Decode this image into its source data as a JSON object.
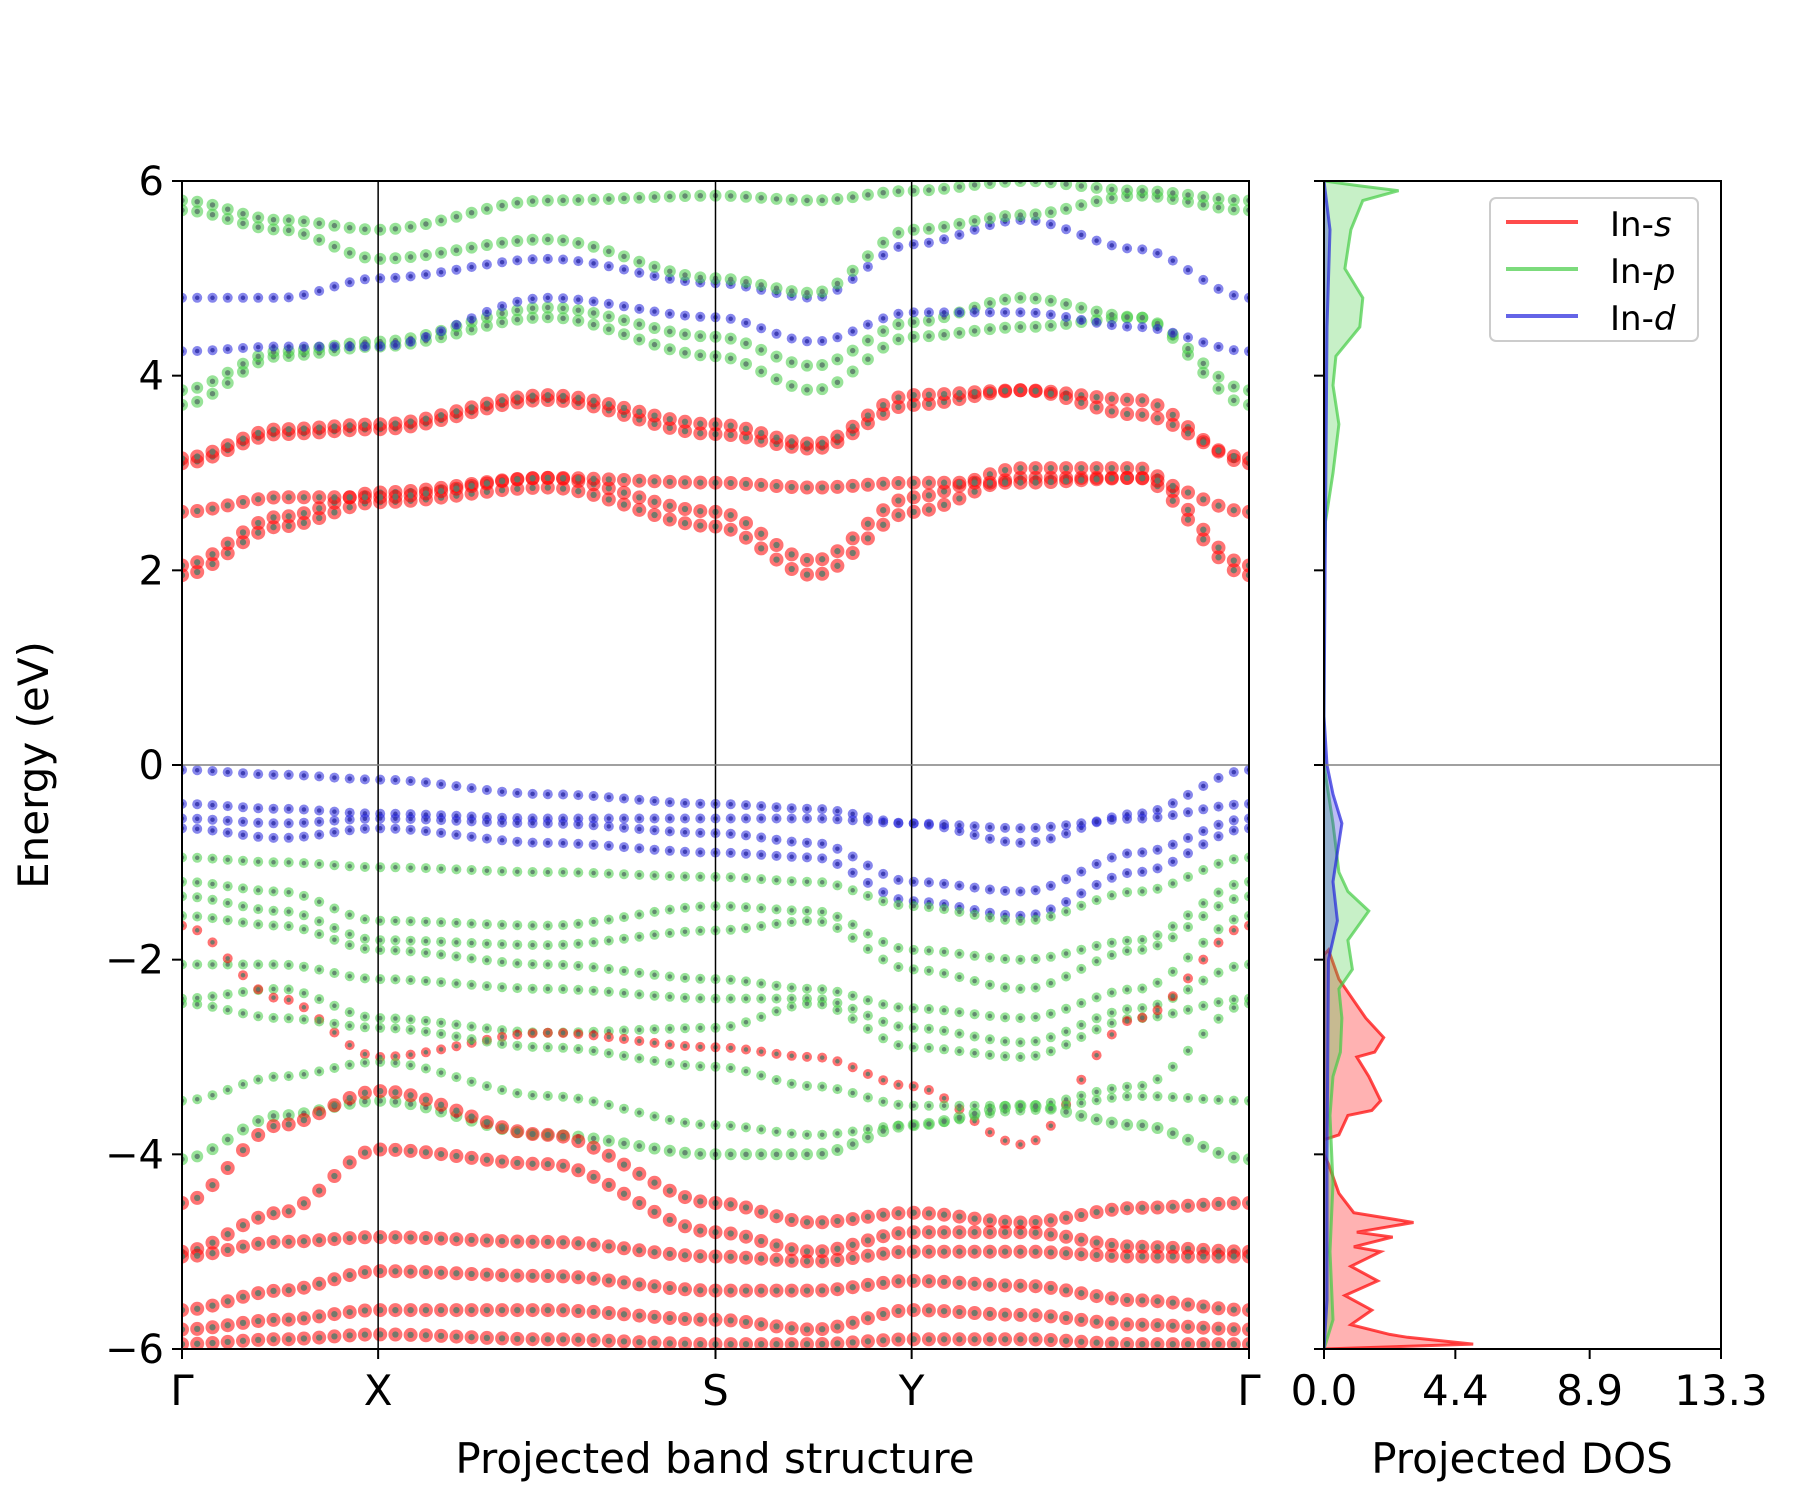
{
  "colors": {
    "s": "#ff0000",
    "p": "#44cc44",
    "d": "#2222dd",
    "axis": "#000000",
    "fermi": "#808080"
  },
  "chart_data": [
    {
      "type": "scatter",
      "title": "",
      "xlabel": "Projected band structure",
      "ylabel": "Energy (eV)",
      "ylim": [
        -6,
        6
      ],
      "yticks": [
        -6,
        -4,
        -2,
        0,
        2,
        4,
        6
      ],
      "ytick_labels": [
        "−6",
        "−4",
        "−2",
        "0",
        "2",
        "4",
        "6"
      ],
      "kpoints": [
        {
          "label": "Γ",
          "pos": 0.0
        },
        {
          "label": "X",
          "pos": 1.0
        },
        {
          "label": "S",
          "pos": 2.72
        },
        {
          "label": "Y",
          "pos": 3.72
        },
        {
          "label": "Γ",
          "pos": 5.44
        }
      ],
      "fermi_level": 0,
      "bands": [
        {
          "orbital": "s",
          "size": 7,
          "energies": [
            1.95,
            2.45,
            2.7,
            2.85,
            2.45,
            1.95,
            2.6,
            2.95,
            2.95,
            1.95
          ]
        },
        {
          "orbital": "s",
          "size": 7,
          "energies": [
            2.05,
            2.55,
            2.8,
            2.95,
            2.6,
            2.1,
            2.75,
            3.05,
            3.05,
            2.05
          ]
        },
        {
          "orbital": "s",
          "size": 7,
          "energies": [
            2.6,
            2.75,
            2.75,
            2.95,
            2.9,
            2.85,
            2.9,
            2.9,
            2.95,
            2.6
          ]
        },
        {
          "orbital": "s",
          "size": 7,
          "energies": [
            3.1,
            3.4,
            3.45,
            3.75,
            3.4,
            3.25,
            3.7,
            3.85,
            3.75,
            3.1
          ]
        },
        {
          "orbital": "s",
          "size": 7,
          "energies": [
            3.15,
            3.45,
            3.5,
            3.8,
            3.5,
            3.3,
            3.8,
            3.85,
            3.6,
            3.15
          ]
        },
        {
          "orbital": "p",
          "size": 6,
          "energies": [
            3.7,
            4.2,
            4.3,
            4.6,
            4.2,
            3.85,
            4.4,
            4.5,
            4.6,
            3.7
          ]
        },
        {
          "orbital": "p",
          "size": 6,
          "energies": [
            3.85,
            4.25,
            4.35,
            4.7,
            4.4,
            4.1,
            4.55,
            4.8,
            4.6,
            3.85
          ]
        },
        {
          "orbital": "d",
          "size": 5,
          "energies": [
            4.25,
            4.3,
            4.3,
            4.8,
            4.6,
            4.35,
            4.65,
            4.65,
            4.5,
            4.25
          ]
        },
        {
          "orbital": "d",
          "size": 5,
          "energies": [
            4.8,
            4.8,
            5.0,
            5.2,
            4.95,
            4.8,
            5.35,
            5.6,
            5.3,
            4.8
          ]
        },
        {
          "orbital": "p",
          "size": 6,
          "energies": [
            5.7,
            5.5,
            5.2,
            5.4,
            5.0,
            4.85,
            5.5,
            5.65,
            5.85,
            5.7
          ]
        },
        {
          "orbital": "p",
          "size": 6,
          "energies": [
            5.8,
            5.6,
            5.5,
            5.8,
            5.85,
            5.8,
            5.9,
            6.0,
            5.9,
            5.8
          ]
        },
        {
          "orbital": "d",
          "size": 5,
          "energies": [
            -0.05,
            -0.1,
            -0.15,
            -0.3,
            -0.4,
            -0.45,
            -0.6,
            -0.8,
            -0.5,
            -0.05
          ]
        },
        {
          "orbital": "d",
          "size": 5,
          "energies": [
            -0.4,
            -0.45,
            -0.5,
            -0.55,
            -0.55,
            -0.55,
            -0.6,
            -0.65,
            -0.55,
            -0.4
          ]
        },
        {
          "orbital": "d",
          "size": 5,
          "energies": [
            -0.55,
            -0.6,
            -0.55,
            -0.6,
            -0.7,
            -0.8,
            -1.2,
            -1.3,
            -0.9,
            -0.55
          ]
        },
        {
          "orbital": "d",
          "size": 5,
          "energies": [
            -0.65,
            -0.75,
            -0.65,
            -0.8,
            -0.9,
            -0.95,
            -1.4,
            -1.55,
            -1.1,
            -0.65
          ]
        },
        {
          "orbital": "p",
          "size": 5,
          "energies": [
            -0.95,
            -1.0,
            -1.05,
            -1.1,
            -1.15,
            -1.2,
            -1.45,
            -1.6,
            -1.3,
            -0.95
          ]
        },
        {
          "orbital": "p",
          "size": 5,
          "energies": [
            -1.2,
            -1.3,
            -1.6,
            -1.65,
            -1.45,
            -1.5,
            -1.9,
            -2.0,
            -1.8,
            -1.2
          ]
        },
        {
          "orbital": "p",
          "size": 5,
          "energies": [
            -1.35,
            -1.5,
            -1.8,
            -1.85,
            -1.7,
            -1.6,
            -2.1,
            -2.3,
            -1.9,
            -1.35
          ]
        },
        {
          "orbital": "p",
          "size": 5,
          "energies": [
            -1.55,
            -1.65,
            -1.9,
            -2.05,
            -2.2,
            -2.3,
            -2.5,
            -2.6,
            -2.3,
            -1.55
          ]
        },
        {
          "orbital": "p",
          "size": 5,
          "energies": [
            -2.05,
            -2.05,
            -2.2,
            -2.3,
            -2.4,
            -2.4,
            -2.7,
            -2.85,
            -2.5,
            -2.05
          ]
        },
        {
          "orbital": "p",
          "size": 5,
          "energies": [
            -2.4,
            -2.3,
            -2.6,
            -2.75,
            -2.7,
            -2.45,
            -2.9,
            -3.0,
            -2.6,
            -2.4
          ]
        },
        {
          "orbital": "s",
          "size": 5,
          "energies": [
            -1.65,
            -2.4,
            -3.0,
            -2.75,
            -2.9,
            -3.0,
            -3.3,
            -3.9,
            -2.6,
            -1.65
          ]
        },
        {
          "orbital": "p",
          "size": 5,
          "energies": [
            -2.45,
            -2.6,
            -2.7,
            -2.9,
            -3.1,
            -3.3,
            -3.5,
            -3.5,
            -3.3,
            -2.45
          ]
        },
        {
          "orbital": "p",
          "size": 5,
          "energies": [
            -3.45,
            -3.2,
            -3.05,
            -3.4,
            -3.7,
            -3.8,
            -3.7,
            -3.55,
            -3.4,
            -3.45
          ]
        },
        {
          "orbital": "p",
          "size": 6,
          "energies": [
            -4.05,
            -3.6,
            -3.45,
            -3.8,
            -4.0,
            -4.0,
            -3.7,
            -3.5,
            -3.7,
            -4.05
          ]
        },
        {
          "orbital": "s",
          "size": 7,
          "energies": [
            -4.5,
            -3.7,
            -3.35,
            -3.8,
            -4.5,
            -4.7,
            -4.6,
            -4.7,
            -4.55,
            -4.5
          ]
        },
        {
          "orbital": "s",
          "size": 7,
          "energies": [
            -5.0,
            -4.6,
            -3.95,
            -4.1,
            -4.8,
            -5.0,
            -4.8,
            -4.8,
            -4.95,
            -5.0
          ]
        },
        {
          "orbital": "s",
          "size": 7,
          "energies": [
            -5.05,
            -4.9,
            -4.85,
            -4.9,
            -5.05,
            -5.1,
            -5.0,
            -5.0,
            -5.05,
            -5.05
          ]
        },
        {
          "orbital": "s",
          "size": 7,
          "energies": [
            -5.6,
            -5.4,
            -5.2,
            -5.25,
            -5.4,
            -5.4,
            -5.3,
            -5.35,
            -5.5,
            -5.6
          ]
        },
        {
          "orbital": "s",
          "size": 7,
          "energies": [
            -5.8,
            -5.7,
            -5.6,
            -5.6,
            -5.7,
            -5.8,
            -5.6,
            -5.65,
            -5.75,
            -5.8
          ]
        },
        {
          "orbital": "s",
          "size": 7,
          "energies": [
            -5.95,
            -5.9,
            -5.85,
            -5.9,
            -5.95,
            -5.95,
            -5.9,
            -5.9,
            -5.95,
            -5.95
          ]
        }
      ]
    },
    {
      "type": "area",
      "title": "",
      "xlabel": "Projected DOS",
      "ylabel": "",
      "xlim": [
        0,
        13.3
      ],
      "ylim": [
        -6,
        6
      ],
      "xticks": [
        0.0,
        4.4,
        8.9,
        13.3
      ],
      "xtick_labels": [
        "0.0",
        "4.4",
        "8.9",
        "13.3"
      ],
      "legend": {
        "position": "top-right"
      },
      "series": [
        {
          "name": "In-s",
          "label_prefix": "In-",
          "label_orbital": "s",
          "orbital": "s",
          "points": [
            [
              0,
              -6.0
            ],
            [
              5.0,
              -5.95
            ],
            [
              2.8,
              -5.88
            ],
            [
              2.2,
              -5.85
            ],
            [
              0.9,
              -5.75
            ],
            [
              1.6,
              -5.6
            ],
            [
              0.7,
              -5.45
            ],
            [
              1.8,
              -5.3
            ],
            [
              0.9,
              -5.15
            ],
            [
              1.9,
              -5.0
            ],
            [
              1.0,
              -4.95
            ],
            [
              2.3,
              -4.85
            ],
            [
              1.1,
              -4.8
            ],
            [
              3.0,
              -4.7
            ],
            [
              1.0,
              -4.6
            ],
            [
              0.5,
              -4.4
            ],
            [
              0.15,
              -4.1
            ],
            [
              0,
              -4.0
            ],
            [
              0,
              -1.95
            ],
            [
              0.15,
              -1.9
            ],
            [
              0.5,
              -2.2
            ],
            [
              1.4,
              -2.6
            ],
            [
              2.0,
              -2.8
            ],
            [
              1.7,
              -2.95
            ],
            [
              1.1,
              -3.0
            ],
            [
              1.5,
              -3.2
            ],
            [
              1.9,
              -3.45
            ],
            [
              1.6,
              -3.55
            ],
            [
              0.8,
              -3.6
            ],
            [
              0.5,
              -3.8
            ],
            [
              0,
              -3.85
            ]
          ]
        },
        {
          "name": "In-p",
          "label_prefix": "In-",
          "label_orbital": "p",
          "orbital": "p",
          "points": [
            [
              0,
              -6.0
            ],
            [
              0.3,
              -5.7
            ],
            [
              0.2,
              -5.0
            ],
            [
              0.3,
              -4.3
            ],
            [
              0.2,
              -3.6
            ],
            [
              0.3,
              -3.2
            ],
            [
              0.55,
              -2.95
            ],
            [
              0.6,
              -2.6
            ],
            [
              0.5,
              -2.3
            ],
            [
              0.95,
              -2.1
            ],
            [
              0.8,
              -1.8
            ],
            [
              1.5,
              -1.5
            ],
            [
              0.8,
              -1.3
            ],
            [
              0.5,
              -1.1
            ],
            [
              0.3,
              -0.6
            ],
            [
              0,
              0
            ],
            [
              0,
              2.0
            ],
            [
              0.05,
              2.5
            ],
            [
              0.3,
              3.0
            ],
            [
              0.5,
              3.5
            ],
            [
              0.3,
              3.9
            ],
            [
              0.4,
              4.2
            ],
            [
              1.2,
              4.5
            ],
            [
              1.3,
              4.8
            ],
            [
              0.7,
              5.1
            ],
            [
              0.9,
              5.5
            ],
            [
              1.3,
              5.8
            ],
            [
              2.5,
              5.9
            ],
            [
              1.2,
              5.95
            ],
            [
              0,
              6.0
            ]
          ]
        },
        {
          "name": "In-d",
          "label_prefix": "In-",
          "label_orbital": "d",
          "orbital": "d",
          "points": [
            [
              0,
              -6.0
            ],
            [
              0.1,
              -5.5
            ],
            [
              0.1,
              -4.0
            ],
            [
              0.15,
              -2.0
            ],
            [
              0.45,
              -1.6
            ],
            [
              0.3,
              -1.2
            ],
            [
              0.45,
              -0.9
            ],
            [
              0.6,
              -0.6
            ],
            [
              0.3,
              -0.3
            ],
            [
              0.1,
              0
            ],
            [
              0,
              0.5
            ],
            [
              0.1,
              4.5
            ],
            [
              0.15,
              5.0
            ],
            [
              0.2,
              5.5
            ],
            [
              0,
              6.0
            ]
          ]
        }
      ]
    }
  ]
}
